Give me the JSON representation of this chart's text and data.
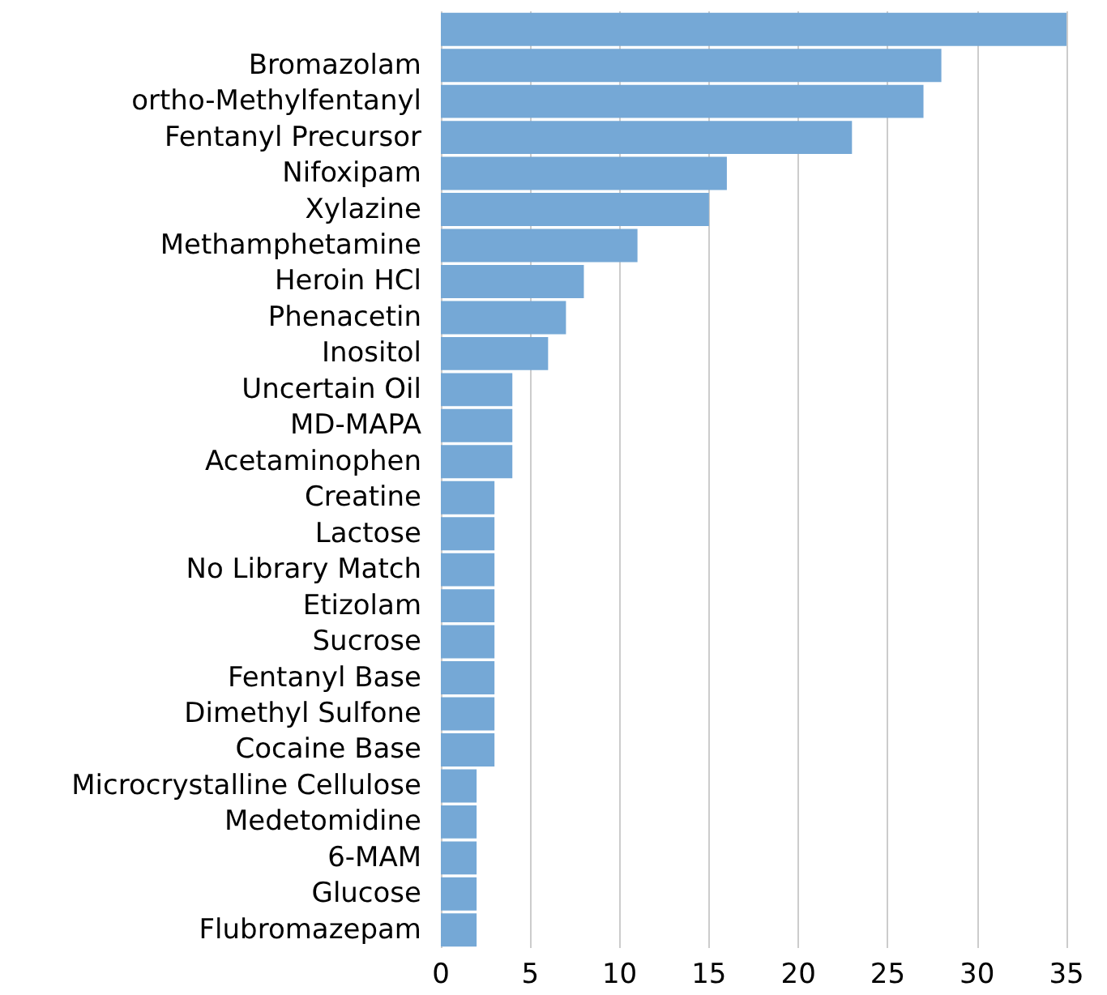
{
  "chart_data": {
    "type": "bar",
    "orientation": "horizontal",
    "categories": [
      null,
      "Bromazolam",
      "ortho-Methylfentanyl",
      "Fentanyl Precursor",
      "Nifoxipam",
      "Xylazine",
      "Methamphetamine",
      "Heroin HCl",
      "Phenacetin",
      "Inositol",
      "Uncertain Oil",
      "MD-MAPA",
      "Acetaminophen",
      "Creatine",
      "Lactose",
      "No Library Match",
      "Etizolam",
      "Sucrose",
      "Fentanyl Base",
      "Dimethyl Sulfone",
      "Cocaine Base",
      "Microcrystalline Cellulose",
      "Medetomidine",
      "6-MAM",
      "Glucose",
      "Flubromazepam"
    ],
    "values": [
      35,
      28,
      27,
      23,
      16,
      15,
      11,
      8,
      7,
      6,
      4,
      4,
      4,
      3,
      3,
      3,
      3,
      3,
      3,
      3,
      3,
      2,
      2,
      2,
      2,
      2
    ],
    "color": "#75a8d6",
    "xlim": [
      0,
      35
    ],
    "xticks": [
      0,
      5,
      10,
      15,
      20,
      25,
      30,
      35
    ],
    "grid": "x"
  }
}
